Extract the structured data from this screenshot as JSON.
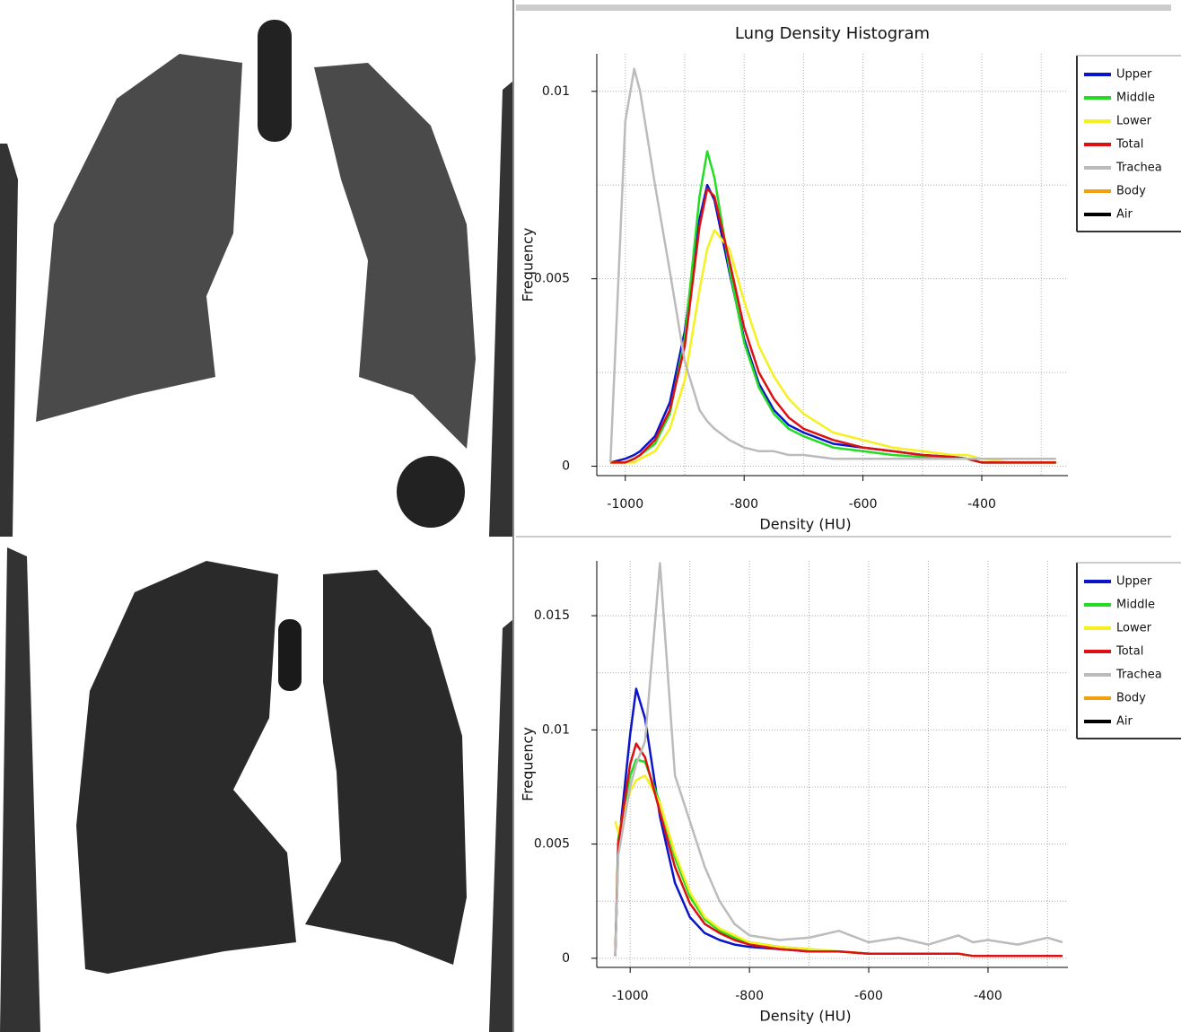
{
  "chart_data": [
    {
      "type": "line",
      "title": "Lung Density Histogram",
      "xlabel": "Density (HU)",
      "ylabel": "Frequency",
      "xlim": [
        -1048,
        -255
      ],
      "xticks": [
        -1000,
        -800,
        -600,
        -400
      ],
      "xminor": [
        -900,
        -700,
        -500,
        -300
      ],
      "ylim": [
        -0.00025,
        0.011
      ],
      "yticks": [
        0,
        0.005,
        0.01
      ],
      "yminor": [
        0.0025,
        0.0075
      ],
      "grid": true,
      "legend": "right",
      "x": [
        -1025,
        -1000,
        -985,
        -975,
        -950,
        -925,
        -900,
        -875,
        -862,
        -850,
        -825,
        -800,
        -775,
        -750,
        -725,
        -700,
        -650,
        -600,
        -550,
        -500,
        -450,
        -425,
        -400,
        -350,
        -300,
        -275
      ],
      "series": [
        {
          "name": "Upper",
          "color": "#0a14c8",
          "values": [
            0.0001,
            0.0002,
            0.0003,
            0.0004,
            0.0008,
            0.0017,
            0.0036,
            0.0066,
            0.0075,
            0.0071,
            0.0052,
            0.0034,
            0.0022,
            0.0015,
            0.0011,
            0.0009,
            0.0006,
            0.0005,
            0.0004,
            0.0003,
            0.00025,
            0.0002,
            0.0001,
            0.0001,
            0.0001,
            0.0001
          ]
        },
        {
          "name": "Middle",
          "color": "#22dd22",
          "values": [
            0.0001,
            0.0001,
            0.0002,
            0.0003,
            0.0006,
            0.0014,
            0.0034,
            0.0072,
            0.0084,
            0.0077,
            0.0053,
            0.0033,
            0.0021,
            0.0014,
            0.001,
            0.0008,
            0.0005,
            0.0004,
            0.0003,
            0.00025,
            0.0002,
            0.0002,
            0.0001,
            0.0001,
            0.0001,
            0.0001
          ]
        },
        {
          "name": "Lower",
          "color": "#f5f01e",
          "values": [
            0.0001,
            0.0001,
            0.0001,
            0.0002,
            0.0004,
            0.001,
            0.0023,
            0.0047,
            0.0058,
            0.0063,
            0.0058,
            0.0044,
            0.0032,
            0.0024,
            0.0018,
            0.0014,
            0.0009,
            0.0007,
            0.0005,
            0.0004,
            0.0003,
            0.0003,
            0.0002,
            0.0001,
            0.0001,
            0.0001
          ]
        },
        {
          "name": "Total",
          "color": "#dd1111",
          "values": [
            0.0001,
            0.0001,
            0.0002,
            0.0003,
            0.0007,
            0.0015,
            0.0032,
            0.0064,
            0.0074,
            0.0072,
            0.0055,
            0.0037,
            0.0025,
            0.0018,
            0.0013,
            0.001,
            0.0007,
            0.0005,
            0.0004,
            0.0003,
            0.00025,
            0.0002,
            0.0001,
            0.0001,
            0.0001,
            0.0001
          ]
        },
        {
          "name": "Trachea",
          "color": "#bbbbbb",
          "values": [
            0.0001,
            0.0092,
            0.0106,
            0.01,
            0.0075,
            0.0052,
            0.0028,
            0.0015,
            0.0012,
            0.001,
            0.0007,
            0.0005,
            0.0004,
            0.0004,
            0.0003,
            0.0003,
            0.0002,
            0.0002,
            0.0002,
            0.0002,
            0.0002,
            0.0002,
            0.0002,
            0.0002,
            0.0002,
            0.0002
          ]
        },
        {
          "name": "Body",
          "color": "#f0a010",
          "values": [
            null,
            null,
            null,
            null,
            null,
            null,
            null,
            null,
            null,
            null,
            null,
            null,
            null,
            null,
            null,
            null,
            null,
            null,
            null,
            null,
            null,
            null,
            null,
            null,
            null,
            null
          ]
        },
        {
          "name": "Air",
          "color": "#000000",
          "values": [
            null,
            null,
            null,
            null,
            null,
            null,
            null,
            null,
            null,
            null,
            null,
            null,
            null,
            null,
            null,
            null,
            null,
            null,
            null,
            null,
            null,
            null,
            null,
            null,
            null,
            null
          ]
        }
      ]
    },
    {
      "type": "line",
      "xlabel": "Density (HU)",
      "ylabel": "Frequency",
      "xlim": [
        -1056,
        -266
      ],
      "xticks": [
        -1000,
        -800,
        -600,
        -400
      ],
      "xminor": [
        -900,
        -700,
        -500,
        -300
      ],
      "ylim": [
        -0.0004,
        0.0174
      ],
      "yticks": [
        0,
        0.005,
        0.01,
        0.015
      ],
      "yminor": [
        0.0025,
        0.0075,
        0.0125
      ],
      "grid": true,
      "legend": "right",
      "x": [
        -1025,
        -1020,
        -1000,
        -990,
        -975,
        -950,
        -925,
        -900,
        -875,
        -850,
        -825,
        -800,
        -750,
        -700,
        -650,
        -600,
        -550,
        -500,
        -450,
        -425,
        -400,
        -350,
        -300,
        -275
      ],
      "series": [
        {
          "name": "Upper",
          "color": "#0a14c8",
          "values": [
            0.0001,
            0.0048,
            0.0098,
            0.0118,
            0.0105,
            0.0062,
            0.0033,
            0.0018,
            0.0011,
            0.0008,
            0.0006,
            0.0005,
            0.0004,
            0.0003,
            0.0003,
            0.0002,
            0.0002,
            0.0002,
            0.0002,
            0.0001,
            0.0001,
            0.0001,
            0.0001,
            0.0001
          ]
        },
        {
          "name": "Middle",
          "color": "#22dd22",
          "values": [
            0.0001,
            0.0052,
            0.008,
            0.0087,
            0.0086,
            0.0068,
            0.0044,
            0.0027,
            0.0017,
            0.0012,
            0.0009,
            0.0007,
            0.0005,
            0.0004,
            0.0003,
            0.0002,
            0.0002,
            0.0002,
            0.0002,
            0.0001,
            0.0001,
            0.0001,
            0.0001,
            0.0001
          ]
        },
        {
          "name": "Lower",
          "color": "#f5f01e",
          "values": [
            0.006,
            0.0055,
            0.0073,
            0.0078,
            0.008,
            0.0068,
            0.0046,
            0.0029,
            0.0018,
            0.0013,
            0.001,
            0.0007,
            0.0005,
            0.0004,
            0.0003,
            0.0002,
            0.0002,
            0.0002,
            0.0002,
            0.0001,
            0.0001,
            0.0001,
            0.0001,
            0.0001
          ]
        },
        {
          "name": "Total",
          "color": "#dd1111",
          "values": [
            0.0001,
            0.005,
            0.0085,
            0.0094,
            0.0088,
            0.0064,
            0.004,
            0.0024,
            0.0015,
            0.0011,
            0.0008,
            0.0006,
            0.0004,
            0.0003,
            0.0003,
            0.0002,
            0.0002,
            0.0002,
            0.0002,
            0.0001,
            0.0001,
            0.0001,
            0.0001,
            0.0001
          ]
        },
        {
          "name": "Trachea",
          "color": "#bbbbbb",
          "values": [
            0.0001,
            0.0045,
            0.0075,
            0.0085,
            0.0095,
            0.0173,
            0.008,
            0.006,
            0.004,
            0.0025,
            0.0015,
            0.001,
            0.0008,
            0.0009,
            0.0012,
            0.0007,
            0.0009,
            0.0006,
            0.001,
            0.0007,
            0.0008,
            0.0006,
            0.0009,
            0.0007
          ]
        },
        {
          "name": "Body",
          "color": "#f0a010",
          "values": [
            null,
            null,
            null,
            null,
            null,
            null,
            null,
            null,
            null,
            null,
            null,
            null,
            null,
            null,
            null,
            null,
            null,
            null,
            null,
            null,
            null,
            null,
            null,
            null
          ]
        },
        {
          "name": "Air",
          "color": "#000000",
          "values": [
            null,
            null,
            null,
            null,
            null,
            null,
            null,
            null,
            null,
            null,
            null,
            null,
            null,
            null,
            null,
            null,
            null,
            null,
            null,
            null,
            null,
            null,
            null,
            null
          ]
        }
      ]
    }
  ]
}
